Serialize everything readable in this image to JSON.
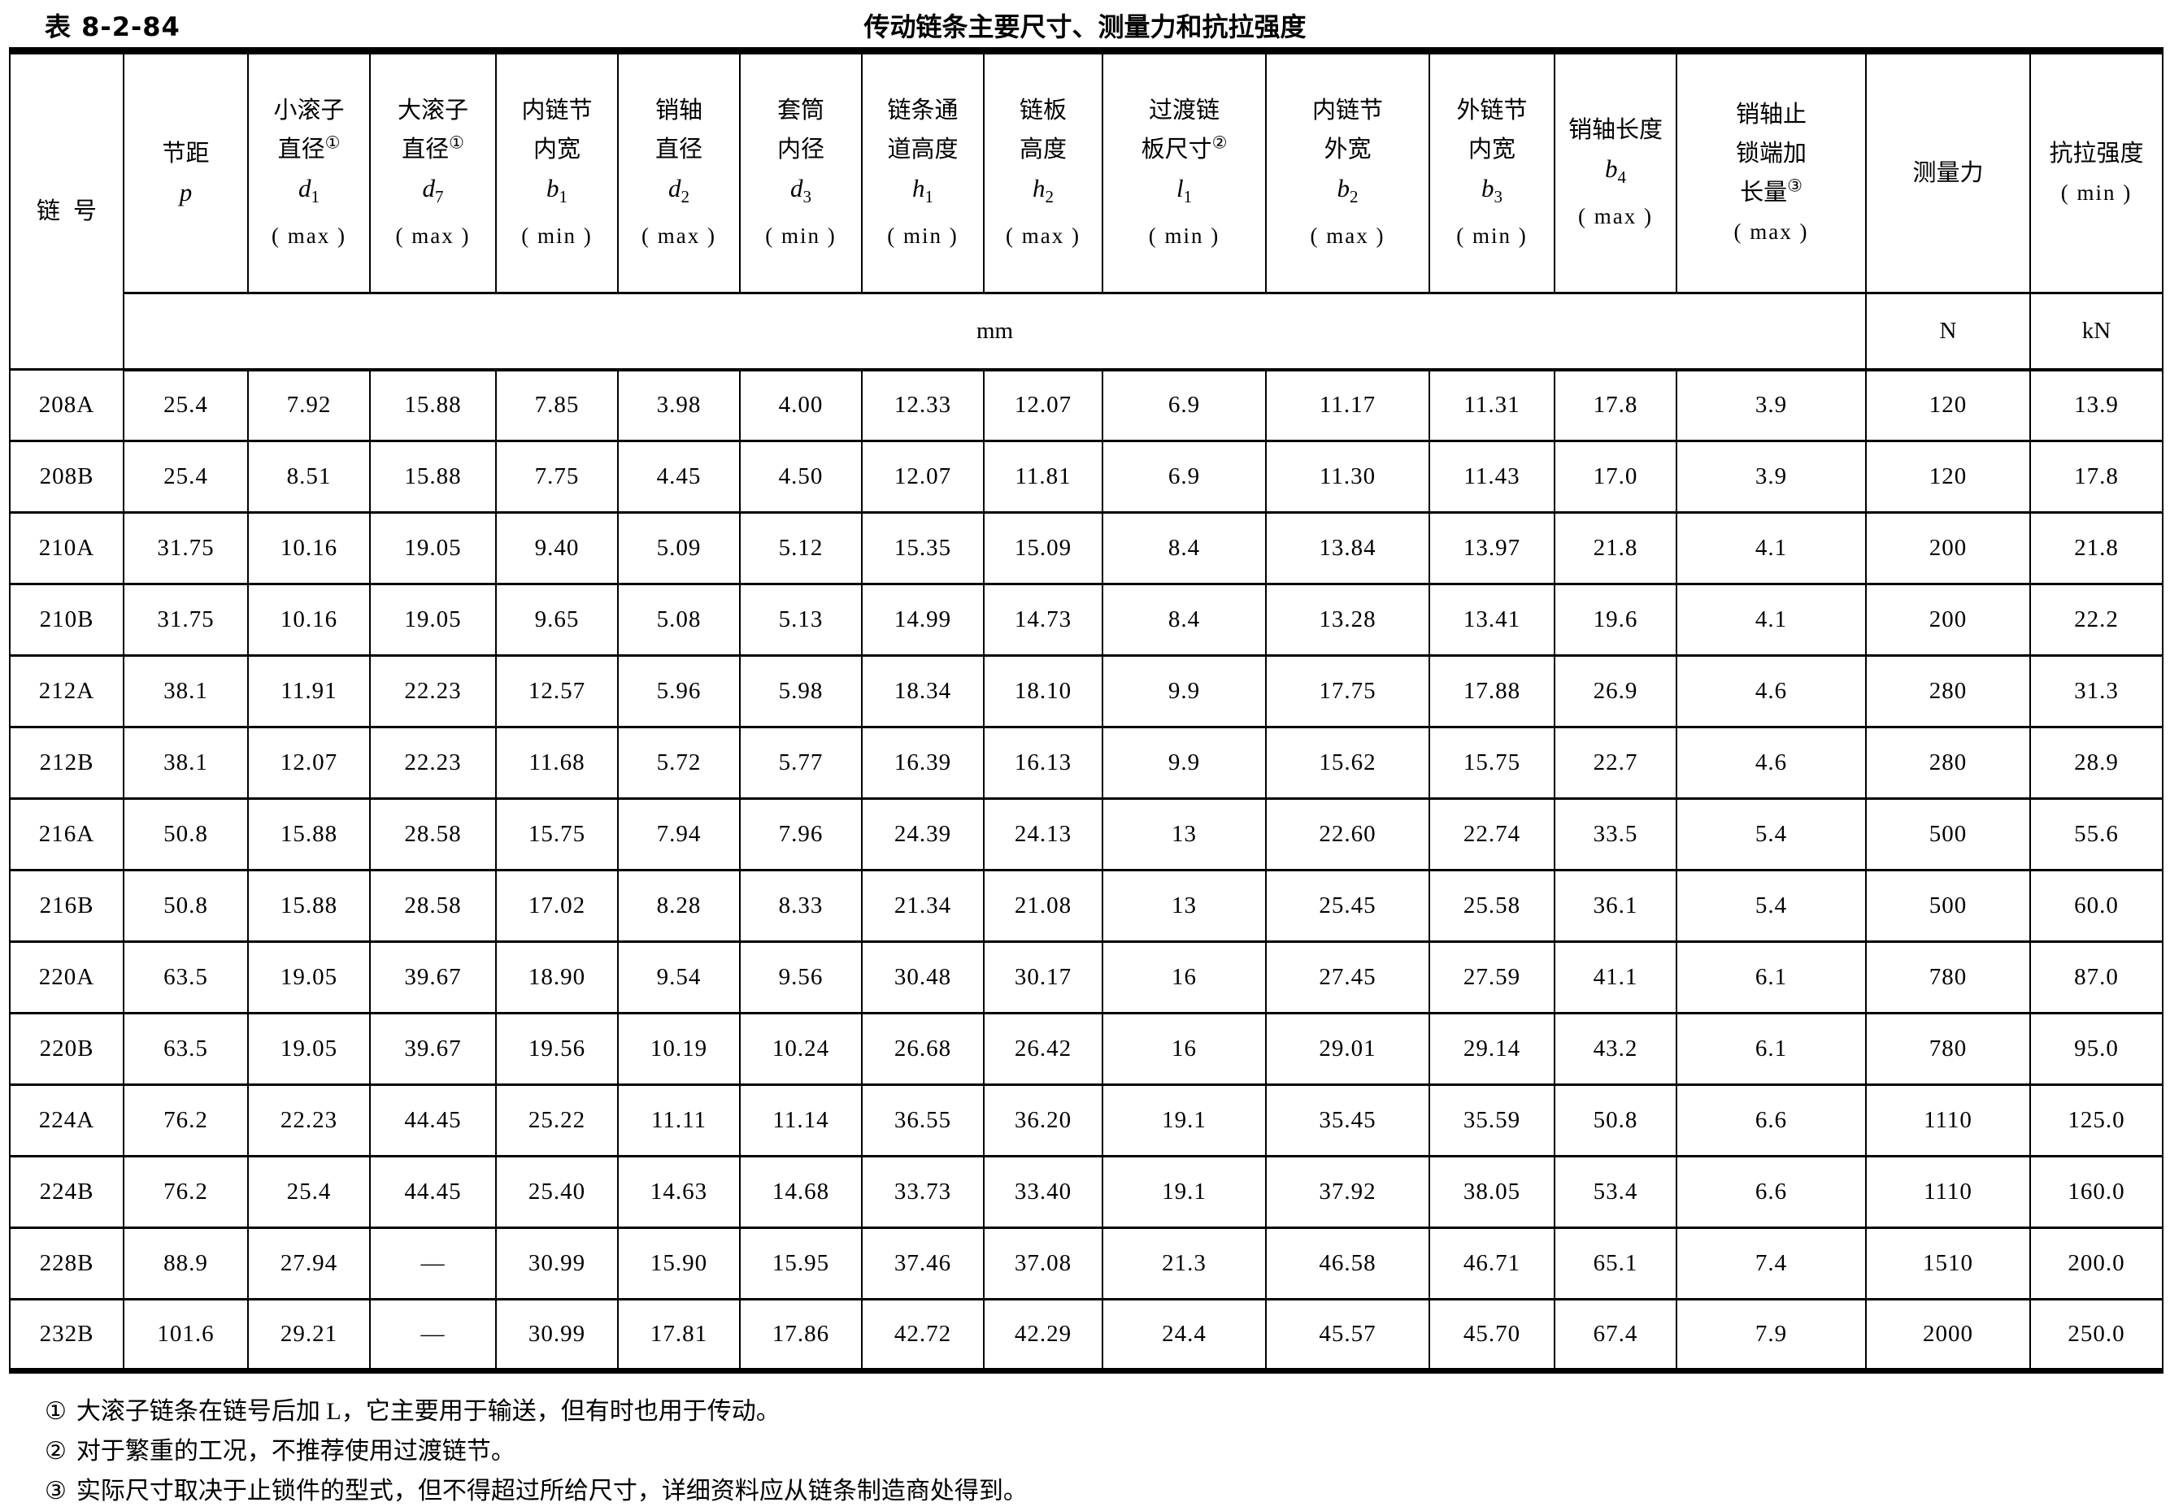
{
  "caption": {
    "table_no": "表 8-2-84",
    "title": "传动链条主要尺寸、测量力和抗拉强度"
  },
  "header": {
    "chain_no": "链号",
    "columns": [
      {
        "l1": "节距",
        "sym": "p"
      },
      {
        "l1": "小滚子",
        "l2": "直径",
        "note": "①",
        "sym": "d",
        "sub": "1",
        "qual": "( max )"
      },
      {
        "l1": "大滚子",
        "l2": "直径",
        "note": "①",
        "sym": "d",
        "sub": "7",
        "qual": "( max )"
      },
      {
        "l1": "内链节",
        "l2": "内宽",
        "sym": "b",
        "sub": "1",
        "qual": "( min )"
      },
      {
        "l1": "销轴",
        "l2": "直径",
        "sym": "d",
        "sub": "2",
        "qual": "( max )"
      },
      {
        "l1": "套筒",
        "l2": "内径",
        "sym": "d",
        "sub": "3",
        "qual": "( min )"
      },
      {
        "l1": "链条通",
        "l2": "道高度",
        "sym": "h",
        "sub": "1",
        "qual": "( min )"
      },
      {
        "l1": "链板",
        "l2": "高度",
        "sym": "h",
        "sub": "2",
        "qual": "( max )"
      },
      {
        "l1": "过渡链",
        "l2": "板尺寸",
        "note": "②",
        "sym": "l",
        "sub": "1",
        "qual": "( min )"
      },
      {
        "l1": "内链节",
        "l2": "外宽",
        "sym": "b",
        "sub": "2",
        "qual": "( max )"
      },
      {
        "l1": "外链节",
        "l2": "内宽",
        "sym": "b",
        "sub": "3",
        "qual": "( min )"
      },
      {
        "l1": "销轴长度",
        "sym": "b",
        "sub": "4",
        "qual": "( max )"
      },
      {
        "l1": "销轴止",
        "l2": "锁端加",
        "l3": "长量",
        "note": "③",
        "qual": "( max )"
      },
      {
        "l1": "测量力"
      },
      {
        "l1": "抗拉强度",
        "qual": "( min )"
      }
    ]
  },
  "units": {
    "dim": "mm",
    "force": "N",
    "strength": "kN"
  },
  "rows": [
    [
      "208A",
      "25.4",
      "7.92",
      "15.88",
      "7.85",
      "3.98",
      "4.00",
      "12.33",
      "12.07",
      "6.9",
      "11.17",
      "11.31",
      "17.8",
      "3.9",
      "120",
      "13.9"
    ],
    [
      "208B",
      "25.4",
      "8.51",
      "15.88",
      "7.75",
      "4.45",
      "4.50",
      "12.07",
      "11.81",
      "6.9",
      "11.30",
      "11.43",
      "17.0",
      "3.9",
      "120",
      "17.8"
    ],
    [
      "210A",
      "31.75",
      "10.16",
      "19.05",
      "9.40",
      "5.09",
      "5.12",
      "15.35",
      "15.09",
      "8.4",
      "13.84",
      "13.97",
      "21.8",
      "4.1",
      "200",
      "21.8"
    ],
    [
      "210B",
      "31.75",
      "10.16",
      "19.05",
      "9.65",
      "5.08",
      "5.13",
      "14.99",
      "14.73",
      "8.4",
      "13.28",
      "13.41",
      "19.6",
      "4.1",
      "200",
      "22.2"
    ],
    [
      "212A",
      "38.1",
      "11.91",
      "22.23",
      "12.57",
      "5.96",
      "5.98",
      "18.34",
      "18.10",
      "9.9",
      "17.75",
      "17.88",
      "26.9",
      "4.6",
      "280",
      "31.3"
    ],
    [
      "212B",
      "38.1",
      "12.07",
      "22.23",
      "11.68",
      "5.72",
      "5.77",
      "16.39",
      "16.13",
      "9.9",
      "15.62",
      "15.75",
      "22.7",
      "4.6",
      "280",
      "28.9"
    ],
    [
      "216A",
      "50.8",
      "15.88",
      "28.58",
      "15.75",
      "7.94",
      "7.96",
      "24.39",
      "24.13",
      "13",
      "22.60",
      "22.74",
      "33.5",
      "5.4",
      "500",
      "55.6"
    ],
    [
      "216B",
      "50.8",
      "15.88",
      "28.58",
      "17.02",
      "8.28",
      "8.33",
      "21.34",
      "21.08",
      "13",
      "25.45",
      "25.58",
      "36.1",
      "5.4",
      "500",
      "60.0"
    ],
    [
      "220A",
      "63.5",
      "19.05",
      "39.67",
      "18.90",
      "9.54",
      "9.56",
      "30.48",
      "30.17",
      "16",
      "27.45",
      "27.59",
      "41.1",
      "6.1",
      "780",
      "87.0"
    ],
    [
      "220B",
      "63.5",
      "19.05",
      "39.67",
      "19.56",
      "10.19",
      "10.24",
      "26.68",
      "26.42",
      "16",
      "29.01",
      "29.14",
      "43.2",
      "6.1",
      "780",
      "95.0"
    ],
    [
      "224A",
      "76.2",
      "22.23",
      "44.45",
      "25.22",
      "11.11",
      "11.14",
      "36.55",
      "36.20",
      "19.1",
      "35.45",
      "35.59",
      "50.8",
      "6.6",
      "1110",
      "125.0"
    ],
    [
      "224B",
      "76.2",
      "25.4",
      "44.45",
      "25.40",
      "14.63",
      "14.68",
      "33.73",
      "33.40",
      "19.1",
      "37.92",
      "38.05",
      "53.4",
      "6.6",
      "1110",
      "160.0"
    ],
    [
      "228B",
      "88.9",
      "27.94",
      "—",
      "30.99",
      "15.90",
      "15.95",
      "37.46",
      "37.08",
      "21.3",
      "46.58",
      "46.71",
      "65.1",
      "7.4",
      "1510",
      "200.0"
    ],
    [
      "232B",
      "101.6",
      "29.21",
      "—",
      "30.99",
      "17.81",
      "17.86",
      "42.72",
      "42.29",
      "24.4",
      "45.57",
      "45.70",
      "67.4",
      "7.9",
      "2000",
      "250.0"
    ]
  ],
  "footnotes": [
    {
      "mark": "①",
      "text": "大滚子链条在链号后加 L，它主要用于输送，但有时也用于传动。"
    },
    {
      "mark": "②",
      "text": "对于繁重的工况，不推荐使用过渡链节。"
    },
    {
      "mark": "③",
      "text": "实际尺寸取决于止锁件的型式，但不得超过所给尺寸，详细资料应从链条制造商处得到。"
    }
  ]
}
